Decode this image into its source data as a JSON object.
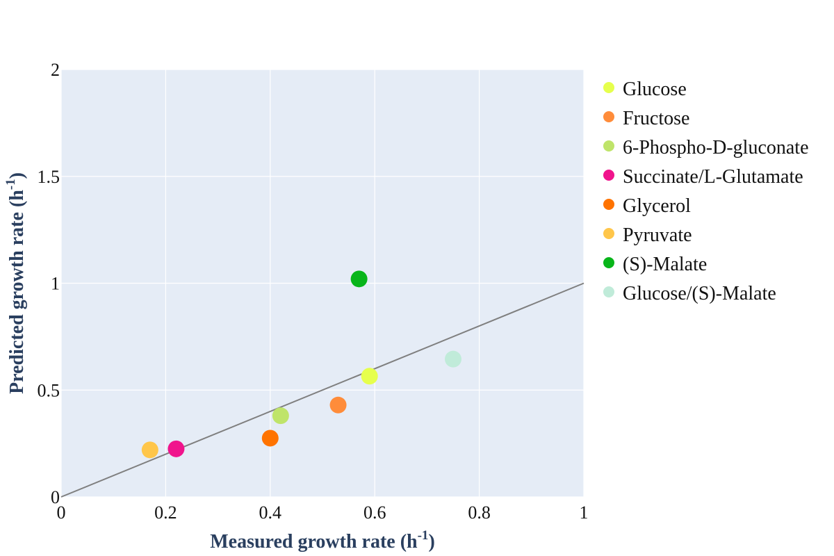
{
  "chart_data": {
    "type": "scatter",
    "xlabel": "Measured growth rate (h",
    "xlabel_sup": "-1",
    "xlabel_end": ")",
    "ylabel": "Predicted growth rate (h",
    "ylabel_sup": "-1",
    "ylabel_end": ")",
    "xlim": [
      0,
      1
    ],
    "ylim": [
      0,
      2
    ],
    "x_ticks": [
      0,
      0.2,
      0.4,
      0.6,
      0.8,
      1
    ],
    "x_tick_labels": [
      "0",
      "0.2",
      "0.4",
      "0.6",
      "0.8",
      "1"
    ],
    "y_ticks": [
      0,
      0.5,
      1,
      1.5,
      2
    ],
    "y_tick_labels": [
      "0",
      "0.5",
      "1",
      "1.5",
      "2"
    ],
    "grid": true,
    "plot_background": "#e5ecf6",
    "grid_color": "#ffffff",
    "legend_position": "right",
    "reference_line": {
      "x": [
        0,
        1
      ],
      "y": [
        0,
        1
      ],
      "color": "#7f7f7f"
    },
    "series": [
      {
        "name": "Glucose",
        "x": 0.59,
        "y": 0.565,
        "color": "#e6ff4d"
      },
      {
        "name": "Fructose",
        "x": 0.53,
        "y": 0.43,
        "color": "#ff8c3a"
      },
      {
        "name": "6-Phospho-D-gluconate",
        "x": 0.42,
        "y": 0.38,
        "color": "#bfe46a"
      },
      {
        "name": "Succinate/L-Glutamate",
        "x": 0.22,
        "y": 0.225,
        "color": "#f0148c"
      },
      {
        "name": "Glycerol",
        "x": 0.4,
        "y": 0.275,
        "color": "#ff7300"
      },
      {
        "name": "Pyruvate",
        "x": 0.17,
        "y": 0.22,
        "color": "#ffc64a"
      },
      {
        "name": "(S)-Malate",
        "x": 0.57,
        "y": 1.02,
        "color": "#08b51a"
      },
      {
        "name": "Glucose/(S)-Malate",
        "x": 0.75,
        "y": 0.645,
        "color": "#c0ebd9"
      }
    ]
  }
}
